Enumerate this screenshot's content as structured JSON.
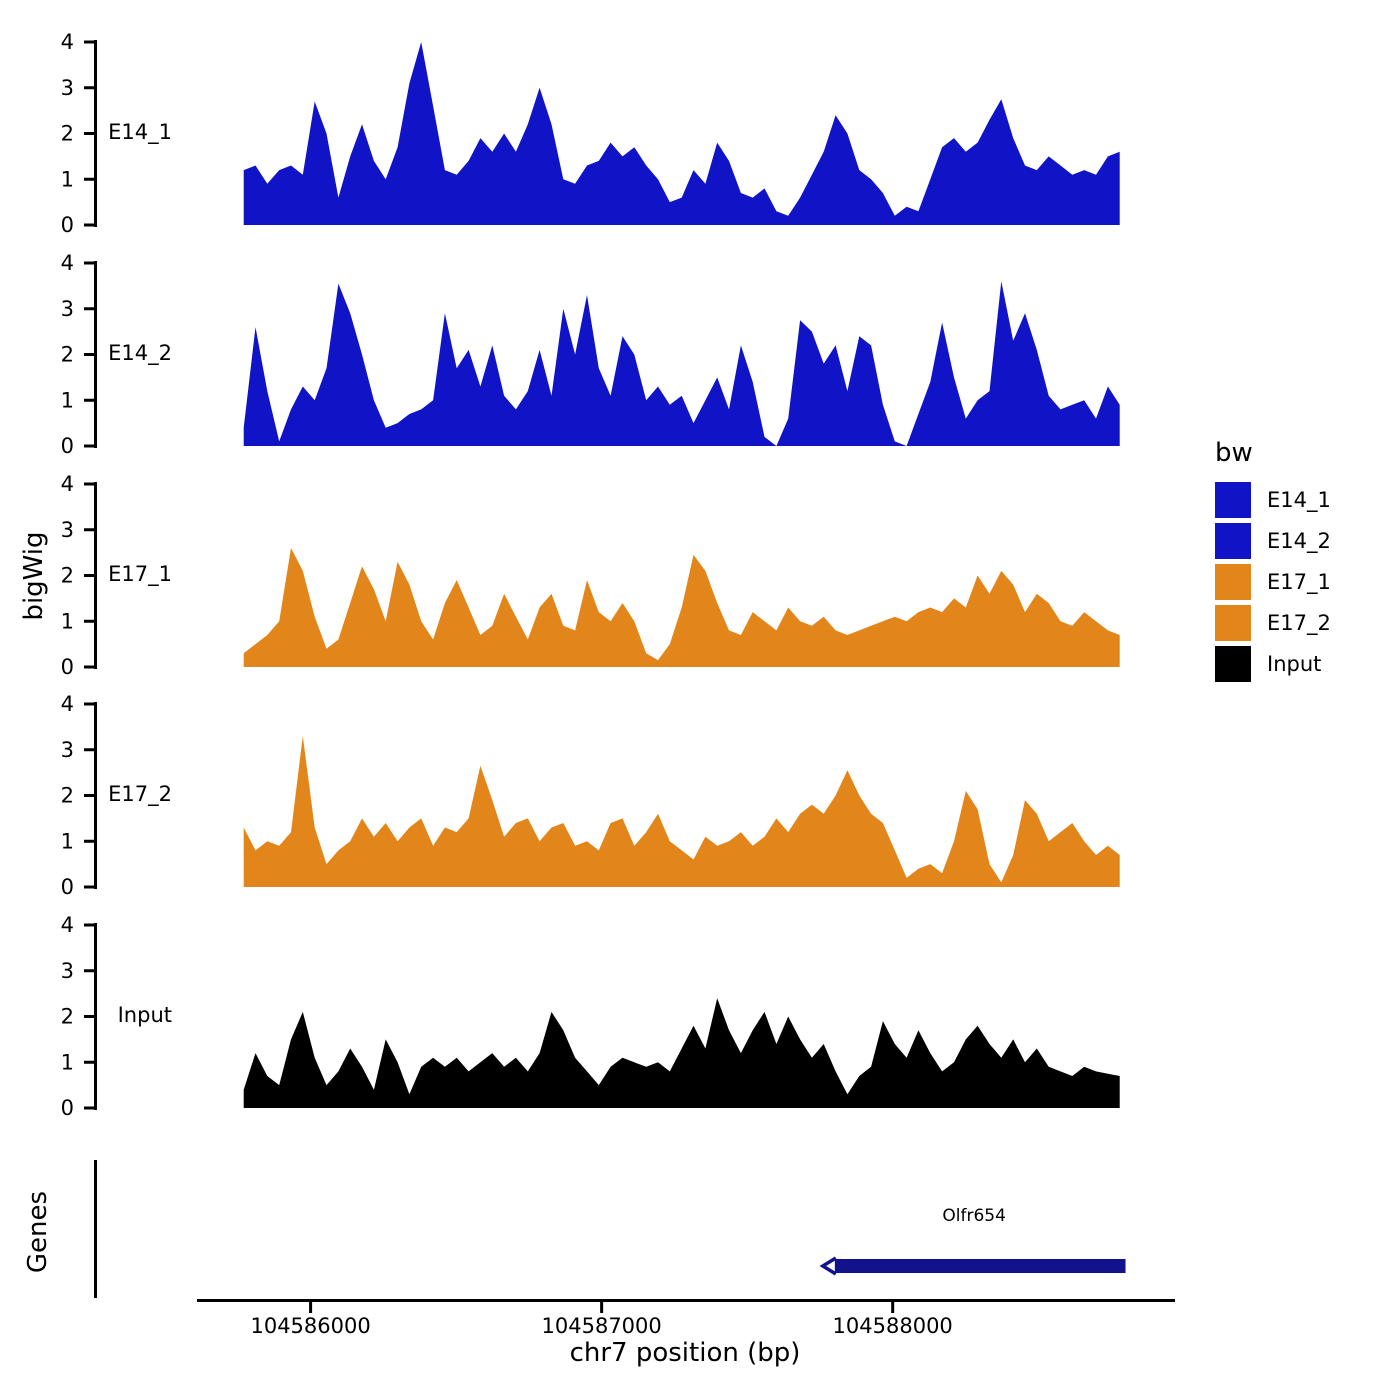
{
  "chart_data": {
    "type": "area",
    "title": "",
    "xlabel": "chr7 position (bp)",
    "ylabel": "bigWig",
    "legend_title": "bw",
    "legend_position": "right",
    "grid": false,
    "x_domain": [
      104585620,
      104588970
    ],
    "data_x": [
      104585770,
      104588780
    ],
    "x_ticks": [
      104586000,
      104587000,
      104588000
    ],
    "x_tick_labels": [
      "104586000",
      "104587000",
      "104588000"
    ],
    "ylim": [
      0,
      4
    ],
    "y_ticks": [
      0,
      1,
      2,
      3,
      4
    ],
    "panels": [
      {
        "name": "E14_1",
        "color": "#1113C7",
        "values": [
          1.2,
          1.3,
          0.9,
          1.2,
          1.3,
          1.1,
          2.7,
          2.0,
          0.6,
          1.5,
          2.2,
          1.4,
          1.0,
          1.7,
          3.1,
          4.05,
          2.6,
          1.2,
          1.1,
          1.4,
          1.9,
          1.6,
          2.0,
          1.6,
          2.2,
          3.0,
          2.2,
          1.0,
          0.9,
          1.3,
          1.4,
          1.8,
          1.5,
          1.7,
          1.3,
          1.0,
          0.5,
          0.6,
          1.2,
          0.9,
          1.8,
          1.4,
          0.7,
          0.6,
          0.8,
          0.3,
          0.2,
          0.6,
          1.1,
          1.6,
          2.4,
          2.0,
          1.2,
          1.0,
          0.7,
          0.2,
          0.4,
          0.3,
          1.0,
          1.7,
          1.9,
          1.6,
          1.8,
          2.3,
          2.75,
          1.9,
          1.3,
          1.2,
          1.5,
          1.3,
          1.1,
          1.2,
          1.1,
          1.5,
          1.6
        ]
      },
      {
        "name": "E14_2",
        "color": "#1113C7",
        "values": [
          0.4,
          2.6,
          1.2,
          0.1,
          0.8,
          1.3,
          1.0,
          1.7,
          3.55,
          2.9,
          2.0,
          1.0,
          0.4,
          0.5,
          0.7,
          0.8,
          1.0,
          2.9,
          1.7,
          2.1,
          1.3,
          2.2,
          1.1,
          0.8,
          1.2,
          2.1,
          1.1,
          3.0,
          2.0,
          3.3,
          1.7,
          1.1,
          2.4,
          2.0,
          1.0,
          1.3,
          0.9,
          1.1,
          0.5,
          1.0,
          1.5,
          0.8,
          2.2,
          1.4,
          0.2,
          0.0,
          0.6,
          2.75,
          2.5,
          1.8,
          2.2,
          1.2,
          2.4,
          2.2,
          0.9,
          0.1,
          0.0,
          0.7,
          1.4,
          2.7,
          1.5,
          0.6,
          1.0,
          1.2,
          3.6,
          2.3,
          2.9,
          2.1,
          1.1,
          0.8,
          0.9,
          1.0,
          0.6,
          1.3,
          0.9
        ]
      },
      {
        "name": "E17_1",
        "color": "#E2861B",
        "values": [
          0.3,
          0.5,
          0.7,
          1.0,
          2.6,
          2.1,
          1.1,
          0.4,
          0.6,
          1.4,
          2.2,
          1.7,
          1.0,
          2.3,
          1.8,
          1.0,
          0.6,
          1.4,
          1.9,
          1.3,
          0.7,
          0.9,
          1.6,
          1.1,
          0.6,
          1.3,
          1.6,
          0.9,
          0.8,
          1.9,
          1.2,
          1.0,
          1.4,
          1.0,
          0.3,
          0.15,
          0.5,
          1.3,
          2.45,
          2.1,
          1.4,
          0.8,
          0.7,
          1.2,
          1.0,
          0.8,
          1.3,
          1.0,
          0.9,
          1.1,
          0.8,
          0.7,
          0.8,
          0.9,
          1.0,
          1.1,
          1.0,
          1.2,
          1.3,
          1.2,
          1.5,
          1.3,
          2.0,
          1.6,
          2.1,
          1.8,
          1.2,
          1.6,
          1.4,
          1.0,
          0.9,
          1.2,
          1.0,
          0.8,
          0.7
        ]
      },
      {
        "name": "E17_2",
        "color": "#E2861B",
        "values": [
          1.3,
          0.8,
          1.0,
          0.9,
          1.2,
          3.3,
          1.3,
          0.5,
          0.8,
          1.0,
          1.5,
          1.1,
          1.4,
          1.0,
          1.3,
          1.5,
          0.9,
          1.3,
          1.2,
          1.5,
          2.65,
          1.9,
          1.1,
          1.4,
          1.5,
          1.0,
          1.3,
          1.4,
          0.9,
          1.0,
          0.8,
          1.4,
          1.5,
          0.9,
          1.2,
          1.6,
          1.0,
          0.8,
          0.6,
          1.1,
          0.9,
          1.0,
          1.2,
          0.9,
          1.1,
          1.5,
          1.2,
          1.6,
          1.8,
          1.6,
          2.0,
          2.55,
          2.0,
          1.6,
          1.4,
          0.8,
          0.2,
          0.4,
          0.5,
          0.3,
          1.0,
          2.1,
          1.7,
          0.5,
          0.1,
          0.7,
          1.9,
          1.6,
          1.0,
          1.2,
          1.4,
          1.0,
          0.7,
          0.9,
          0.7
        ]
      },
      {
        "name": "Input",
        "color": "#000000",
        "values": [
          0.4,
          1.2,
          0.7,
          0.5,
          1.5,
          2.1,
          1.1,
          0.5,
          0.8,
          1.3,
          0.9,
          0.4,
          1.5,
          1.0,
          0.3,
          0.9,
          1.1,
          0.9,
          1.1,
          0.8,
          1.0,
          1.2,
          0.9,
          1.1,
          0.8,
          1.2,
          2.1,
          1.7,
          1.1,
          0.8,
          0.5,
          0.9,
          1.1,
          1.0,
          0.9,
          1.0,
          0.8,
          1.3,
          1.8,
          1.3,
          2.4,
          1.7,
          1.2,
          1.7,
          2.1,
          1.4,
          2.0,
          1.5,
          1.1,
          1.4,
          0.8,
          0.3,
          0.7,
          0.9,
          1.9,
          1.4,
          1.1,
          1.7,
          1.2,
          0.8,
          1.0,
          1.5,
          1.8,
          1.4,
          1.1,
          1.5,
          1.0,
          1.3,
          0.9,
          0.8,
          0.7,
          0.9,
          0.8,
          0.75,
          0.7
        ]
      }
    ],
    "genes_track": {
      "label": "Genes",
      "genes": [
        {
          "name": "Olfr654",
          "start": 104587760,
          "end": 104588800,
          "strand": "-",
          "color": "#12128C"
        }
      ]
    }
  }
}
